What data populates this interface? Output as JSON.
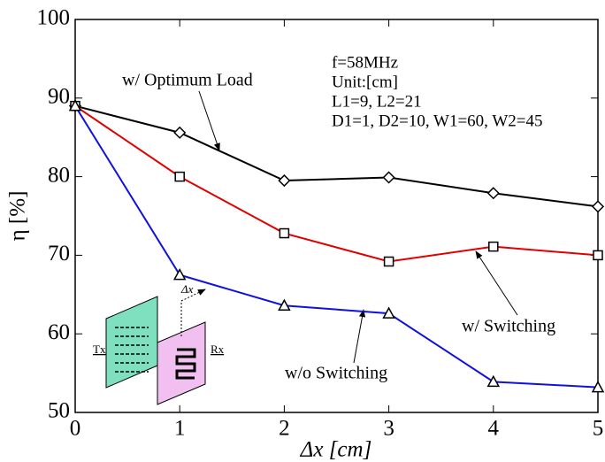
{
  "chart_data": {
    "type": "line",
    "x_label": "Δx [cm]",
    "y_label": "η [%]",
    "x": [
      0,
      1,
      2,
      3,
      4,
      5
    ],
    "series": [
      {
        "name": "w/  Optimum Load",
        "color": "#000000",
        "marker": "diamond",
        "values": [
          89,
          85.6,
          79.5,
          79.9,
          77.9,
          76.2
        ]
      },
      {
        "name": "w/  Switching",
        "color": "#e00000",
        "marker": "square",
        "values": [
          89,
          80,
          72.8,
          69.2,
          71.1,
          70
        ]
      },
      {
        "name": "w/o Switching",
        "color": "#1010e0",
        "marker": "triangle",
        "values": [
          89,
          67.5,
          63.6,
          62.6,
          53.9,
          53.2
        ]
      }
    ],
    "xlim": [
      0,
      5
    ],
    "xticks": [
      0,
      1,
      2,
      3,
      4,
      5
    ],
    "ylim": [
      50,
      100
    ],
    "yticks": [
      50,
      60,
      70,
      80,
      90,
      100
    ],
    "params": [
      "f=58MHz",
      "Unit:[cm]",
      "L1=9, L2=21",
      "D1=1, D2=10, W1=60, W2=45"
    ],
    "inset_labels": {
      "tx": "Tx",
      "rx": "Rx",
      "dx": "Δx"
    }
  }
}
